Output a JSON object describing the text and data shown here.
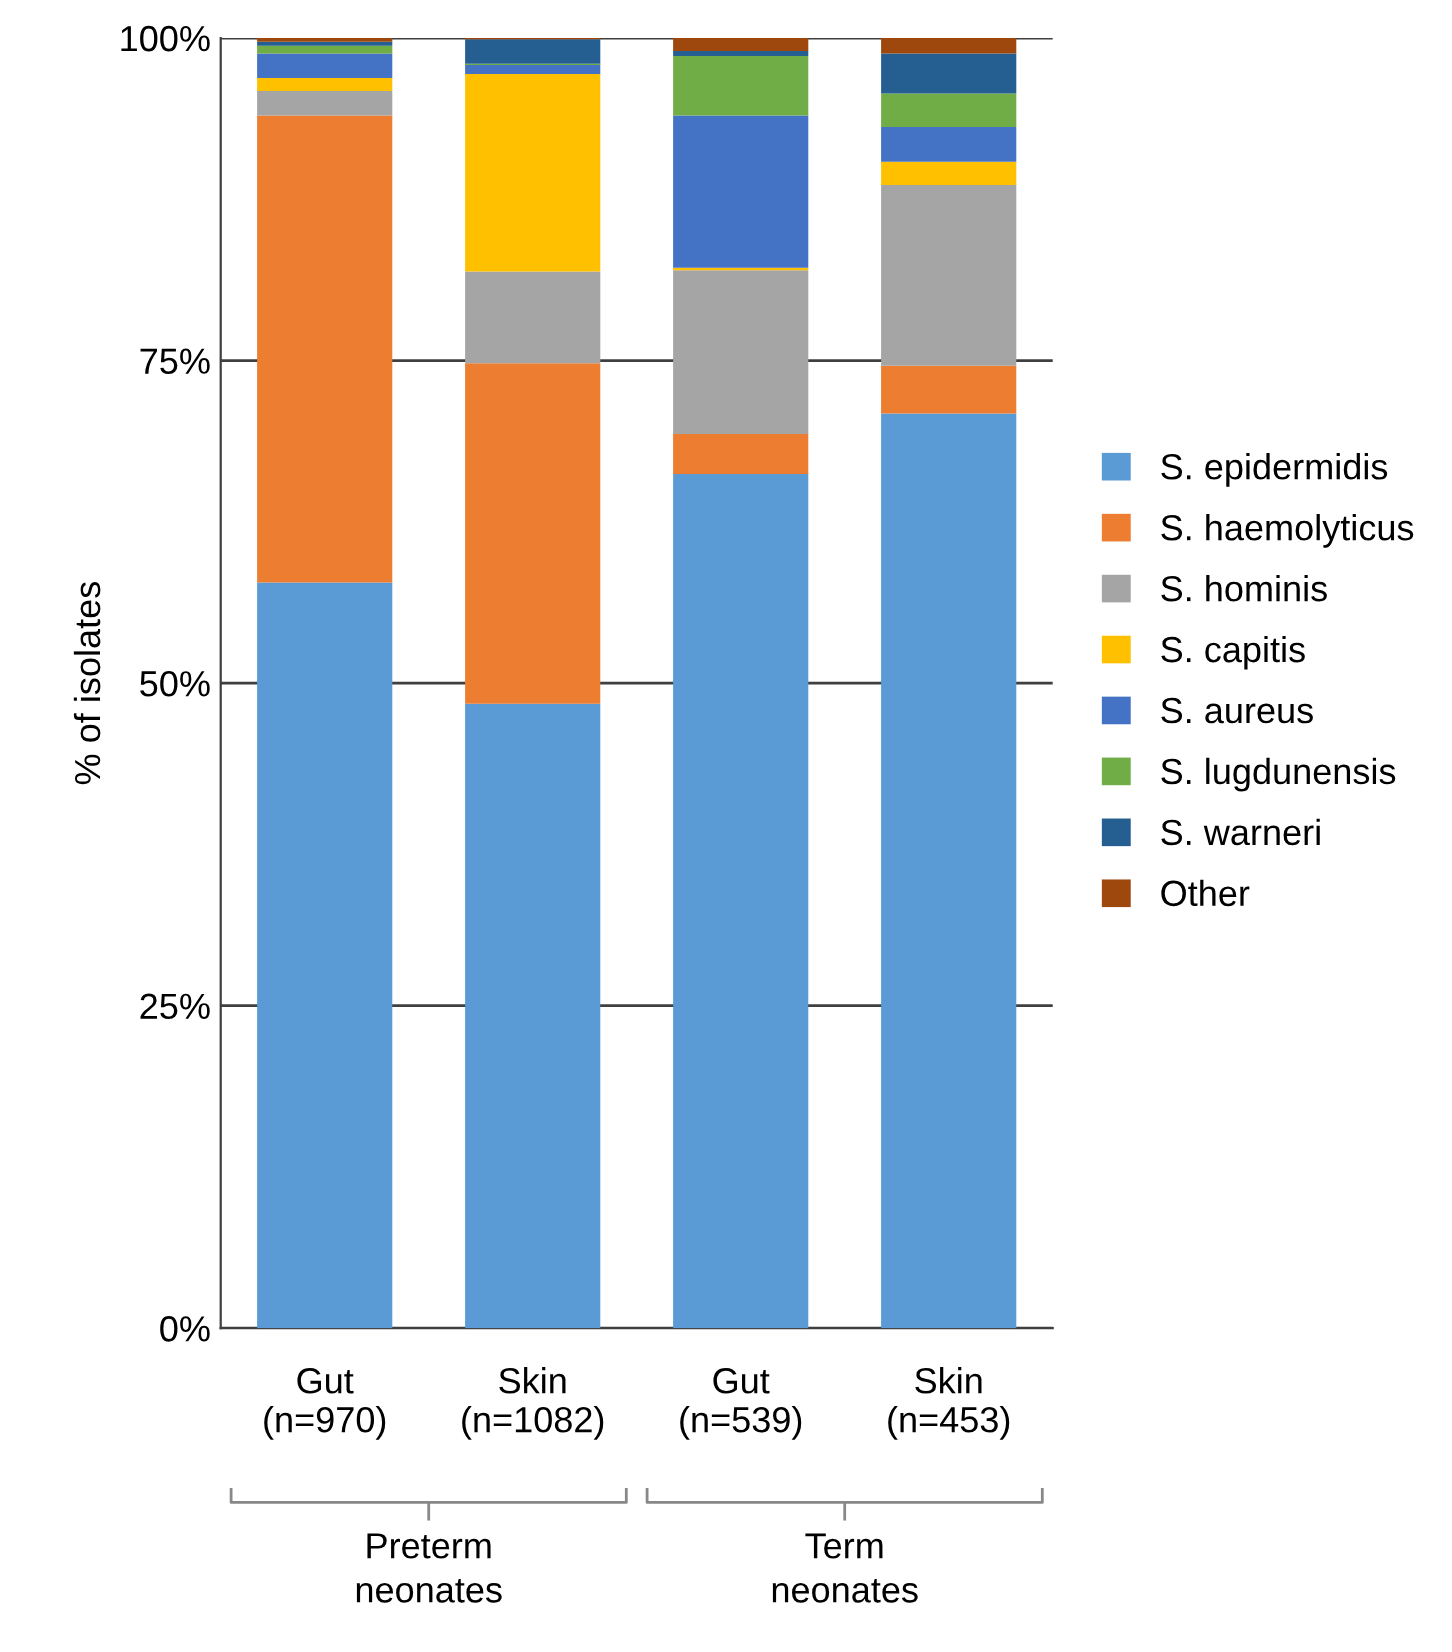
{
  "chart_data": {
    "type": "bar",
    "stacked": true,
    "ylabel": "% of isolates",
    "categories": [
      "Gut\n(n=970)",
      "Skin\n(n=1082)",
      "Gut\n(n=539)",
      "Skin\n(n=453)"
    ],
    "series": [
      {
        "name": "S. epidermidis",
        "color": "#5b9bd5",
        "values": [
          57.8,
          48.4,
          66.2,
          70.9
        ]
      },
      {
        "name": "S. haemolyticus",
        "color": "#ed7d31",
        "values": [
          36.2,
          26.4,
          3.1,
          3.7
        ]
      },
      {
        "name": "S. hominis",
        "color": "#a5a5a5",
        "values": [
          1.9,
          7.1,
          12.7,
          14.0
        ]
      },
      {
        "name": "S. capitis",
        "color": "#ffc000",
        "values": [
          1.0,
          15.3,
          0.2,
          1.8
        ]
      },
      {
        "name": "S. aureus",
        "color": "#4472c4",
        "values": [
          1.9,
          0.7,
          11.8,
          2.7
        ]
      },
      {
        "name": "S. lugdunensis",
        "color": "#70ad47",
        "values": [
          0.6,
          0.1,
          4.6,
          2.6
        ]
      },
      {
        "name": "S. warneri",
        "color": "#255e91",
        "values": [
          0.3,
          1.9,
          0.4,
          3.1
        ]
      },
      {
        "name": "Other",
        "color": "#9e480e",
        "values": [
          0.3,
          0.1,
          1.0,
          1.2
        ]
      }
    ],
    "ylim": [
      0,
      100
    ],
    "yticks": [
      {
        "value": 0,
        "label": "0%"
      },
      {
        "value": 25,
        "label": "25%"
      },
      {
        "value": 50,
        "label": "50%"
      },
      {
        "value": 75,
        "label": "75%"
      },
      {
        "value": 100,
        "label": "100%"
      }
    ],
    "grid": "y",
    "legend": "right",
    "annotations": [
      "Preterm\nneonates",
      "Term\nneonates"
    ]
  }
}
